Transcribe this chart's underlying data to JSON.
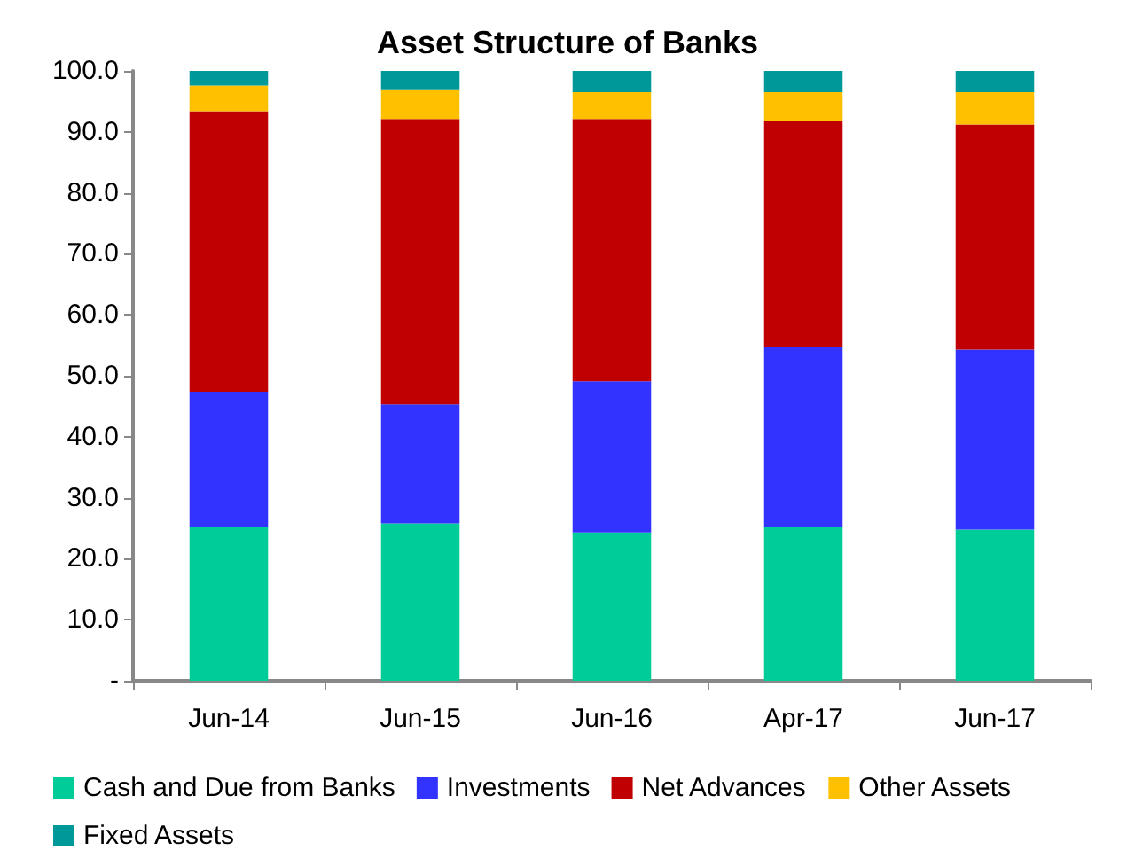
{
  "chart_data": {
    "type": "bar",
    "title": "Asset Structure of Banks",
    "stacked": true,
    "categories": [
      "Jun-14",
      "Jun-15",
      "Jun-16",
      "Apr-17",
      "Jun-17"
    ],
    "series": [
      {
        "name": "Cash and Due from Banks",
        "color": "#00cc99",
        "values": [
          25.2,
          25.8,
          24.3,
          25.2,
          24.8
        ]
      },
      {
        "name": "Investments",
        "color": "#3333ff",
        "values": [
          22.2,
          19.5,
          24.8,
          29.6,
          29.5
        ]
      },
      {
        "name": "Net Advances",
        "color": "#c00000",
        "values": [
          46.0,
          46.8,
          43.0,
          36.9,
          36.9
        ]
      },
      {
        "name": "Other Assets",
        "color": "#ffc000",
        "values": [
          4.2,
          4.9,
          4.4,
          4.8,
          5.3
        ]
      },
      {
        "name": "Fixed Assets",
        "color": "#009999",
        "values": [
          2.4,
          3.0,
          3.5,
          3.5,
          3.5
        ]
      }
    ],
    "ylim": [
      0,
      100
    ],
    "yticks": [
      {
        "value": 0,
        "label": "-"
      },
      {
        "value": 10,
        "label": "10.0"
      },
      {
        "value": 20,
        "label": "20.0"
      },
      {
        "value": 30,
        "label": "30.0"
      },
      {
        "value": 40,
        "label": "40.0"
      },
      {
        "value": 50,
        "label": "50.0"
      },
      {
        "value": 60,
        "label": "60.0"
      },
      {
        "value": 70,
        "label": "70.0"
      },
      {
        "value": 80,
        "label": "80.0"
      },
      {
        "value": 90,
        "label": "90.0"
      },
      {
        "value": 100,
        "label": "100.0"
      }
    ],
    "grid": false,
    "legend": "bottom"
  }
}
